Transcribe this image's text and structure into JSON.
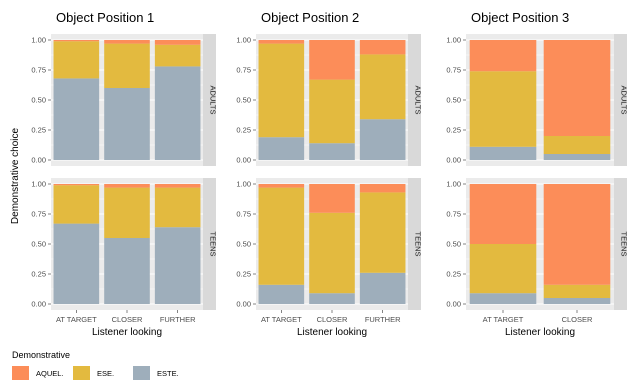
{
  "colors": {
    "AQUEL.": "#FC8D59",
    "ESE.": "#E3BA3F",
    "ESTE.": "#9EAEBB",
    "panel_bg": "#EBEBEB",
    "grid": "#FFFFFF",
    "strip_bg": "#D9D9D9"
  },
  "chart_data": {
    "type": "bar",
    "stacked": true,
    "ylabel": "Demonstrative choice",
    "xlabel": "Listener looking",
    "ylim": [
      0,
      1
    ],
    "yticks": [
      "0.00",
      "0.25",
      "0.50",
      "0.75",
      "1.00"
    ],
    "rows": [
      "ADULTS",
      "TEENS"
    ],
    "legend": {
      "title": "Demonstrative",
      "placement": "bottom-left",
      "entries": [
        "AQUEL.",
        "ESE.",
        "ESTE."
      ]
    },
    "panels": [
      {
        "title": "Object Position 1",
        "categories": [
          "AT TARGET",
          "CLOSER",
          "FURTHER"
        ],
        "data": {
          "ADULTS": [
            {
              "name": "ESTE.",
              "values": [
                0.68,
                0.6,
                0.78
              ]
            },
            {
              "name": "ESE.",
              "values": [
                0.31,
                0.37,
                0.18
              ]
            },
            {
              "name": "AQUEL.",
              "values": [
                0.01,
                0.03,
                0.04
              ]
            }
          ],
          "TEENS": [
            {
              "name": "ESTE.",
              "values": [
                0.67,
                0.55,
                0.64
              ]
            },
            {
              "name": "ESE.",
              "values": [
                0.32,
                0.42,
                0.33
              ]
            },
            {
              "name": "AQUEL.",
              "values": [
                0.01,
                0.03,
                0.03
              ]
            }
          ]
        }
      },
      {
        "title": "Object Position 2",
        "categories": [
          "AT TARGET",
          "CLOSER",
          "FURTHER"
        ],
        "data": {
          "ADULTS": [
            {
              "name": "ESTE.",
              "values": [
                0.19,
                0.14,
                0.34
              ]
            },
            {
              "name": "ESE.",
              "values": [
                0.78,
                0.53,
                0.54
              ]
            },
            {
              "name": "AQUEL.",
              "values": [
                0.03,
                0.33,
                0.12
              ]
            }
          ],
          "TEENS": [
            {
              "name": "ESTE.",
              "values": [
                0.16,
                0.09,
                0.26
              ]
            },
            {
              "name": "ESE.",
              "values": [
                0.81,
                0.67,
                0.67
              ]
            },
            {
              "name": "AQUEL.",
              "values": [
                0.03,
                0.24,
                0.07
              ]
            }
          ]
        }
      },
      {
        "title": "Object Position 3",
        "categories": [
          "AT TARGET",
          "CLOSER"
        ],
        "data": {
          "ADULTS": [
            {
              "name": "ESTE.",
              "values": [
                0.11,
                0.05
              ]
            },
            {
              "name": "ESE.",
              "values": [
                0.63,
                0.15
              ]
            },
            {
              "name": "AQUEL.",
              "values": [
                0.26,
                0.8
              ]
            }
          ],
          "TEENS": [
            {
              "name": "ESTE.",
              "values": [
                0.09,
                0.05
              ]
            },
            {
              "name": "ESE.",
              "values": [
                0.41,
                0.11
              ]
            },
            {
              "name": "AQUEL.",
              "values": [
                0.5,
                0.84
              ]
            }
          ]
        }
      }
    ]
  }
}
